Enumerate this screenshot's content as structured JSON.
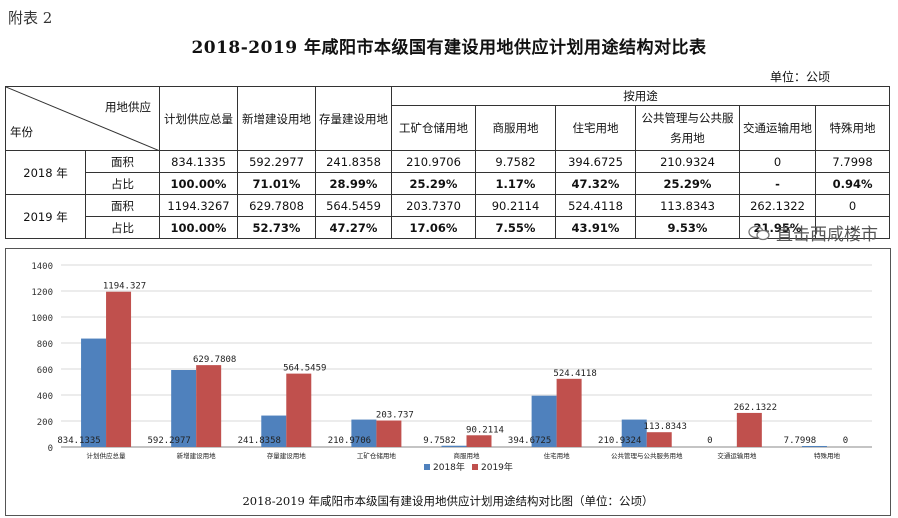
{
  "attachment_label": "附表 2",
  "title": "2018-2019 年咸阳市本级国有建设用地供应计划用途结构对比表",
  "unit_label": "单位：公顷",
  "table": {
    "corner_top": "用地供应",
    "corner_bottom": "年份",
    "group_header": "按用途",
    "headers": [
      "计划供应总量",
      "新增建设用地",
      "存量建设用地",
      "工矿仓储用地",
      "商服用地",
      "住宅用地",
      "公共管理与公共服务用地",
      "交通运输用地",
      "特殊用地"
    ],
    "rows": [
      {
        "year": "2018 年",
        "kind": "面积",
        "values": [
          "834.1335",
          "592.2977",
          "241.8358",
          "210.9706",
          "9.7582",
          "394.6725",
          "210.9324",
          "0",
          "7.7998"
        ]
      },
      {
        "year": "",
        "kind": "占比",
        "values": [
          "100.00%",
          "71.01%",
          "28.99%",
          "25.29%",
          "1.17%",
          "47.32%",
          "25.29%",
          "-",
          "0.94%"
        ]
      },
      {
        "year": "2019 年",
        "kind": "面积",
        "values": [
          "1194.3267",
          "629.7808",
          "564.5459",
          "203.7370",
          "90.2114",
          "524.4118",
          "113.8343",
          "262.1322",
          "0"
        ]
      },
      {
        "year": "",
        "kind": "占比",
        "values": [
          "100.00%",
          "52.73%",
          "47.27%",
          "17.06%",
          "7.55%",
          "43.91%",
          "9.53%",
          "21.95%",
          "-"
        ]
      }
    ]
  },
  "chart_data": {
    "type": "bar",
    "title": "2018-2019 年咸阳市本级国有建设用地供应计划用途结构对比图（单位：公顷）",
    "categories": [
      "计划供应总量",
      "新增建设用地",
      "存量建设用地",
      "工矿仓储用地",
      "商服用地",
      "住宅用地",
      "公共管理与公共服务用地",
      "交通运输用地",
      "特殊用地"
    ],
    "series": [
      {
        "name": "2018年",
        "color": "#4f81bd",
        "values": [
          834.1335,
          592.2977,
          241.8358,
          210.9706,
          9.7582,
          394.6725,
          210.9324,
          0,
          7.7998
        ],
        "labels": [
          "834.1335",
          "592.2977",
          "241.8358",
          "210.9706",
          "9.7582",
          "394.6725",
          "210.9324",
          "0",
          "7.7998"
        ]
      },
      {
        "name": "2019年",
        "color": "#c0504d",
        "values": [
          1194.327,
          629.7808,
          564.5459,
          203.737,
          90.2114,
          524.4118,
          113.8343,
          262.1322,
          0
        ],
        "labels": [
          "1194.327",
          "629.7808",
          "564.5459",
          "203.737",
          "90.2114",
          "524.4118",
          "113.8343",
          "262.1322",
          "0"
        ]
      }
    ],
    "ylim": [
      0,
      1400
    ],
    "yticks": [
      0,
      200,
      400,
      600,
      800,
      1000,
      1200,
      1400
    ],
    "grid": true,
    "legend_position": "bottom"
  },
  "watermark": "直击西咸楼市"
}
